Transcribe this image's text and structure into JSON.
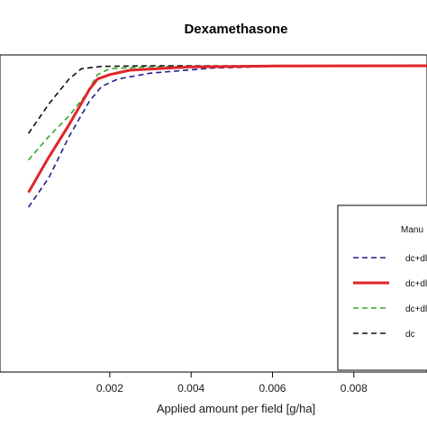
{
  "chart_data": {
    "type": "line",
    "title": "Dexamethasone",
    "xlabel": "Applied amount per field [g/ha]",
    "ylabel": "",
    "xlim": [
      -0.0007,
      0.0098
    ],
    "ylim": [
      0,
      1.0
    ],
    "x_ticks": [
      0.002,
      0.004,
      0.006,
      0.008
    ],
    "x_tick_labels": [
      "0.002",
      "0.004",
      "0.006",
      "0.008"
    ],
    "grid": false,
    "legend": {
      "placement": "right",
      "title": "Manu",
      "entries": [
        "dc+dl",
        "dc+dl",
        "dc+dl",
        "dc"
      ]
    },
    "series": [
      {
        "name": "dc+dl",
        "color": "#1f1f8c",
        "dash": "dashed",
        "points": [
          [
            0.0,
            0.52
          ],
          [
            0.0005,
            0.62
          ],
          [
            0.001,
            0.76
          ],
          [
            0.0015,
            0.88
          ],
          [
            0.0018,
            0.93
          ],
          [
            0.0022,
            0.955
          ],
          [
            0.003,
            0.975
          ],
          [
            0.0045,
            0.992
          ],
          [
            0.006,
            0.998
          ],
          [
            0.0098,
            1.0
          ]
        ]
      },
      {
        "name": "dc+dl",
        "color": "#e0252a",
        "dash": "solid",
        "points": [
          [
            0.0,
            0.57
          ],
          [
            0.0005,
            0.69
          ],
          [
            0.001,
            0.8
          ],
          [
            0.0015,
            0.92
          ],
          [
            0.0017,
            0.955
          ],
          [
            0.002,
            0.97
          ],
          [
            0.0025,
            0.985
          ],
          [
            0.004,
            0.996
          ],
          [
            0.006,
            0.999
          ],
          [
            0.0098,
            1.0
          ]
        ]
      },
      {
        "name": "dc+dl",
        "color": "#2eaa2e",
        "dash": "dashed",
        "points": [
          [
            0.0,
            0.68
          ],
          [
            0.0005,
            0.76
          ],
          [
            0.001,
            0.83
          ],
          [
            0.0014,
            0.9
          ],
          [
            0.0017,
            0.97
          ],
          [
            0.002,
            0.99
          ],
          [
            0.003,
            0.997
          ],
          [
            0.0098,
            1.0
          ]
        ]
      },
      {
        "name": "dc",
        "color": "#111111",
        "dash": "dashed",
        "points": [
          [
            0.0,
            0.77
          ],
          [
            0.0005,
            0.87
          ],
          [
            0.001,
            0.955
          ],
          [
            0.0013,
            0.99
          ],
          [
            0.0018,
            0.998
          ],
          [
            0.003,
            1.0
          ],
          [
            0.0098,
            1.0
          ]
        ]
      }
    ]
  }
}
